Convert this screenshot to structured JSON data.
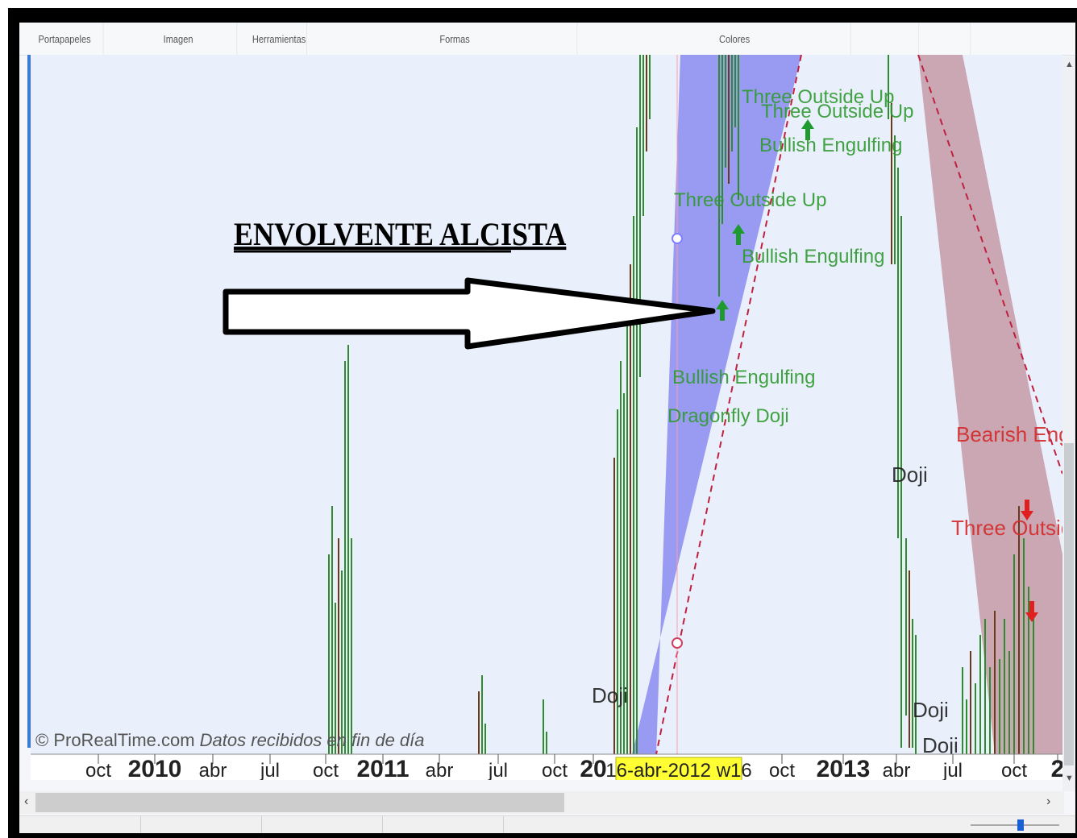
{
  "ribbon": {
    "groups": [
      "Portapapeles",
      "Imagen",
      "Herramientas",
      "Formas",
      "Colores"
    ]
  },
  "annotation": {
    "title": "ENVOLVENTE ALCISTA"
  },
  "watermark": {
    "brand": "© ProRealTime.com",
    "note": "Datos recibidos en fin de día"
  },
  "chart_data": {
    "type": "candlestick",
    "x_ticks": [
      "oct",
      "2010",
      "abr",
      "jul",
      "oct",
      "2011",
      "abr",
      "jul",
      "oct",
      "20",
      "oct",
      "2013",
      "abr",
      "jul",
      "oct",
      "2"
    ],
    "cursor_label": "16-abr-2012 w16",
    "pattern_labels": [
      {
        "text": "Three Outside Up",
        "color": "#2e9a2e"
      },
      {
        "text": "Three Outside Up",
        "color": "#2e9a2e"
      },
      {
        "text": "Bullish Engulfing",
        "color": "#2e9a2e"
      },
      {
        "text": "Three Outside Up",
        "color": "#2e9a2e"
      },
      {
        "text": "Bullish Engulfing",
        "color": "#2e9a2e"
      },
      {
        "text": "Bullish Engulfing",
        "color": "#2e9a2e"
      },
      {
        "text": "Dragonfly Doji",
        "color": "#2e9a2e"
      },
      {
        "text": "Doji",
        "color": "#222222"
      },
      {
        "text": "Doji",
        "color": "#222222"
      },
      {
        "text": "Doji",
        "color": "#222222"
      },
      {
        "text": "Doji",
        "color": "#222222"
      },
      {
        "text": "Bearish Engu",
        "color": "#d42a2a"
      },
      {
        "text": "Three Outside",
        "color": "#d42a2a"
      }
    ],
    "colors": {
      "bull_candle": "#2e8b2e",
      "bear_candle": "#6b3a1a",
      "bull_zone": "#8b8cf0",
      "bear_zone": "#c49aa6",
      "bull_arrow": "#1f9a2f",
      "bear_arrow": "#e02020",
      "cursor_highlight": "#ffff33"
    }
  }
}
